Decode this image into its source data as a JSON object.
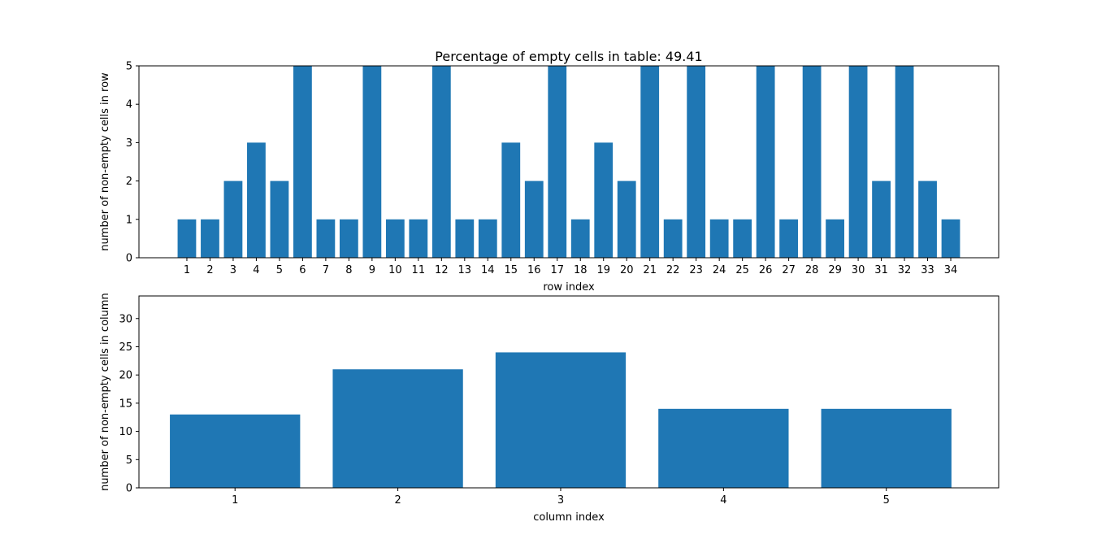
{
  "chart_data": [
    {
      "type": "bar",
      "title": "Percentage of empty cells in table: 49.41",
      "xlabel": "row index",
      "ylabel": "number of non-empty cells in row",
      "categories": [
        1,
        2,
        3,
        4,
        5,
        6,
        7,
        8,
        9,
        10,
        11,
        12,
        13,
        14,
        15,
        16,
        17,
        18,
        19,
        20,
        21,
        22,
        23,
        24,
        25,
        26,
        27,
        28,
        29,
        30,
        31,
        32,
        33,
        34
      ],
      "values": [
        1,
        1,
        2,
        3,
        2,
        5,
        1,
        1,
        5,
        1,
        1,
        5,
        1,
        1,
        3,
        2,
        5,
        1,
        3,
        2,
        5,
        1,
        5,
        1,
        1,
        5,
        1,
        5,
        1,
        5,
        2,
        5,
        2,
        1
      ],
      "xlim": [
        -1.07,
        36.07
      ],
      "ylim": [
        0,
        5
      ],
      "yticks": [
        0,
        1,
        2,
        3,
        4,
        5
      ],
      "bar_color": "#1f77b4",
      "grid": false
    },
    {
      "type": "bar",
      "title": "",
      "xlabel": "column index",
      "ylabel": "number of non-empty cells in column",
      "categories": [
        1,
        2,
        3,
        4,
        5
      ],
      "values": [
        13,
        21,
        24,
        14,
        14
      ],
      "xlim": [
        0.41,
        5.69
      ],
      "ylim": [
        0,
        34
      ],
      "yticks": [
        0,
        5,
        10,
        15,
        20,
        25,
        30
      ],
      "bar_color": "#1f77b4",
      "grid": false
    }
  ]
}
